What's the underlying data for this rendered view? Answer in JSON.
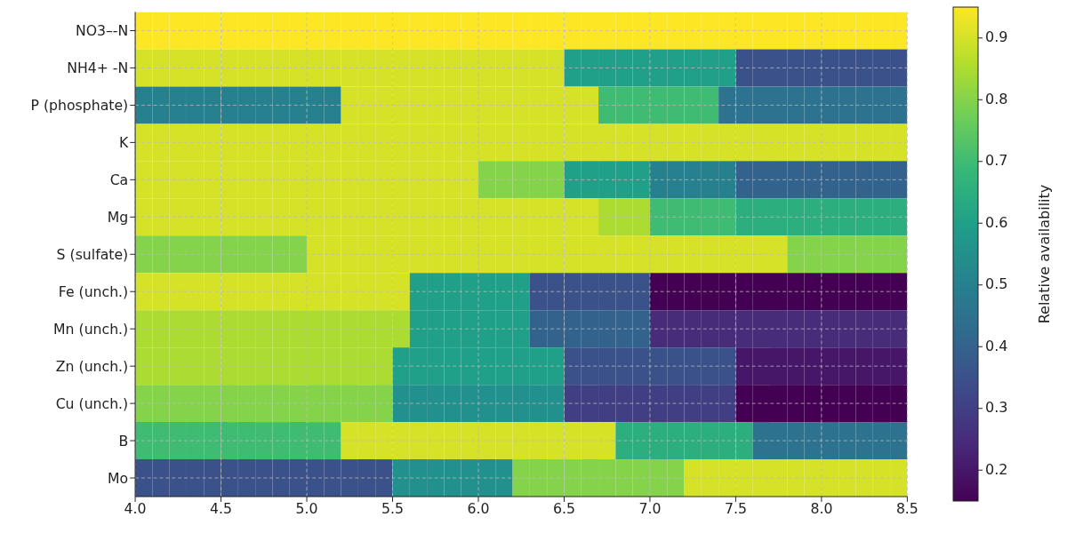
{
  "chart_data": {
    "type": "heatmap",
    "clabel": "Relative availability",
    "x": [
      4.05,
      4.15,
      4.25,
      4.35,
      4.45,
      4.55,
      4.65,
      4.75,
      4.85,
      4.95,
      5.05,
      5.15,
      5.25,
      5.35,
      5.45,
      5.55,
      5.65,
      5.75,
      5.85,
      5.95,
      6.05,
      6.15,
      6.25,
      6.35,
      6.45,
      6.55,
      6.65,
      6.75,
      6.85,
      6.95,
      7.05,
      7.15,
      7.25,
      7.35,
      7.45,
      7.55,
      7.65,
      7.75,
      7.85,
      7.95,
      8.05,
      8.15,
      8.25,
      8.35,
      8.45
    ],
    "xlim": [
      4.0,
      8.5
    ],
    "xticks": [
      {
        "value": 4.0,
        "label": "4.0"
      },
      {
        "value": 4.5,
        "label": "4.5"
      },
      {
        "value": 5.0,
        "label": "5.0"
      },
      {
        "value": 5.5,
        "label": "5.5"
      },
      {
        "value": 6.0,
        "label": "6.0"
      },
      {
        "value": 6.5,
        "label": "6.5"
      },
      {
        "value": 7.0,
        "label": "7.0"
      },
      {
        "value": 7.5,
        "label": "7.5"
      },
      {
        "value": 8.0,
        "label": "8.0"
      },
      {
        "value": 8.5,
        "label": "8.5"
      }
    ],
    "y_categories": [
      "NO3–-N",
      "NH4+ -N",
      "P (phosphate)",
      "K",
      "Ca",
      "Mg",
      "S (sulfate)",
      "Fe (unch.)",
      "Mn (unch.)",
      "Zn (unch.)",
      "Cu (unch.)",
      "B",
      "Mo"
    ],
    "cells": [
      [
        0.95,
        0.95,
        0.95,
        0.95,
        0.95,
        0.95,
        0.95,
        0.95,
        0.95,
        0.95,
        0.95,
        0.95,
        0.95,
        0.95,
        0.95,
        0.95,
        0.95,
        0.95,
        0.95,
        0.95,
        0.95,
        0.95,
        0.95,
        0.95,
        0.95,
        0.95,
        0.95,
        0.95,
        0.95,
        0.95,
        0.95,
        0.95,
        0.95,
        0.95,
        0.95,
        0.95,
        0.95,
        0.95,
        0.95,
        0.95,
        0.95,
        0.95,
        0.95,
        0.95,
        0.95
      ],
      [
        0.9,
        0.9,
        0.9,
        0.9,
        0.9,
        0.9,
        0.9,
        0.9,
        0.9,
        0.9,
        0.9,
        0.9,
        0.9,
        0.9,
        0.9,
        0.9,
        0.9,
        0.9,
        0.9,
        0.9,
        0.9,
        0.9,
        0.9,
        0.9,
        0.9,
        0.6,
        0.6,
        0.6,
        0.6,
        0.6,
        0.6,
        0.6,
        0.6,
        0.6,
        0.6,
        0.35,
        0.35,
        0.35,
        0.35,
        0.35,
        0.35,
        0.35,
        0.35,
        0.35,
        0.35
      ],
      [
        0.5,
        0.5,
        0.5,
        0.5,
        0.5,
        0.5,
        0.5,
        0.5,
        0.5,
        0.5,
        0.5,
        0.5,
        0.9,
        0.9,
        0.9,
        0.9,
        0.9,
        0.9,
        0.9,
        0.9,
        0.9,
        0.9,
        0.9,
        0.9,
        0.9,
        0.9,
        0.9,
        0.7,
        0.7,
        0.7,
        0.7,
        0.7,
        0.7,
        0.7,
        0.45,
        0.45,
        0.45,
        0.45,
        0.45,
        0.45,
        0.45,
        0.45,
        0.45,
        0.45,
        0.45
      ],
      [
        0.9,
        0.9,
        0.9,
        0.9,
        0.9,
        0.9,
        0.9,
        0.9,
        0.9,
        0.9,
        0.9,
        0.9,
        0.9,
        0.9,
        0.9,
        0.9,
        0.9,
        0.9,
        0.9,
        0.9,
        0.9,
        0.9,
        0.9,
        0.9,
        0.9,
        0.9,
        0.9,
        0.9,
        0.9,
        0.9,
        0.9,
        0.9,
        0.9,
        0.9,
        0.9,
        0.9,
        0.9,
        0.9,
        0.9,
        0.9,
        0.9,
        0.9,
        0.9,
        0.9,
        0.9
      ],
      [
        0.9,
        0.9,
        0.9,
        0.9,
        0.9,
        0.9,
        0.9,
        0.9,
        0.9,
        0.9,
        0.9,
        0.9,
        0.9,
        0.9,
        0.9,
        0.9,
        0.9,
        0.9,
        0.9,
        0.9,
        0.8,
        0.8,
        0.8,
        0.8,
        0.8,
        0.6,
        0.6,
        0.6,
        0.6,
        0.6,
        0.5,
        0.5,
        0.5,
        0.5,
        0.5,
        0.4,
        0.4,
        0.4,
        0.4,
        0.4,
        0.4,
        0.4,
        0.4,
        0.4,
        0.4
      ],
      [
        0.9,
        0.9,
        0.9,
        0.9,
        0.9,
        0.9,
        0.9,
        0.9,
        0.9,
        0.9,
        0.9,
        0.9,
        0.9,
        0.9,
        0.9,
        0.9,
        0.9,
        0.9,
        0.9,
        0.9,
        0.9,
        0.9,
        0.9,
        0.9,
        0.9,
        0.9,
        0.9,
        0.85,
        0.85,
        0.85,
        0.7,
        0.7,
        0.7,
        0.7,
        0.7,
        0.65,
        0.65,
        0.65,
        0.65,
        0.65,
        0.65,
        0.65,
        0.65,
        0.65,
        0.65
      ],
      [
        0.8,
        0.8,
        0.8,
        0.8,
        0.8,
        0.8,
        0.8,
        0.8,
        0.8,
        0.8,
        0.9,
        0.9,
        0.9,
        0.9,
        0.9,
        0.9,
        0.9,
        0.9,
        0.9,
        0.9,
        0.9,
        0.9,
        0.9,
        0.9,
        0.9,
        0.9,
        0.9,
        0.9,
        0.9,
        0.9,
        0.9,
        0.9,
        0.9,
        0.9,
        0.9,
        0.9,
        0.9,
        0.9,
        0.8,
        0.8,
        0.8,
        0.8,
        0.8,
        0.8,
        0.8
      ],
      [
        0.9,
        0.9,
        0.9,
        0.9,
        0.9,
        0.9,
        0.9,
        0.9,
        0.9,
        0.9,
        0.9,
        0.9,
        0.9,
        0.9,
        0.9,
        0.9,
        0.6,
        0.6,
        0.6,
        0.6,
        0.6,
        0.6,
        0.6,
        0.35,
        0.35,
        0.35,
        0.35,
        0.35,
        0.35,
        0.35,
        0.15,
        0.15,
        0.15,
        0.15,
        0.15,
        0.15,
        0.15,
        0.15,
        0.15,
        0.15,
        0.15,
        0.15,
        0.15,
        0.15,
        0.15
      ],
      [
        0.85,
        0.85,
        0.85,
        0.85,
        0.85,
        0.85,
        0.85,
        0.85,
        0.85,
        0.85,
        0.85,
        0.85,
        0.85,
        0.85,
        0.85,
        0.85,
        0.6,
        0.6,
        0.6,
        0.6,
        0.6,
        0.6,
        0.6,
        0.4,
        0.4,
        0.4,
        0.4,
        0.4,
        0.4,
        0.4,
        0.25,
        0.25,
        0.25,
        0.25,
        0.25,
        0.25,
        0.25,
        0.25,
        0.25,
        0.25,
        0.25,
        0.25,
        0.25,
        0.25,
        0.25
      ],
      [
        0.85,
        0.85,
        0.85,
        0.85,
        0.85,
        0.85,
        0.85,
        0.85,
        0.85,
        0.85,
        0.85,
        0.85,
        0.85,
        0.85,
        0.85,
        0.6,
        0.6,
        0.6,
        0.6,
        0.6,
        0.6,
        0.6,
        0.6,
        0.6,
        0.6,
        0.35,
        0.35,
        0.35,
        0.35,
        0.35,
        0.35,
        0.35,
        0.35,
        0.35,
        0.35,
        0.2,
        0.2,
        0.2,
        0.2,
        0.2,
        0.2,
        0.2,
        0.2,
        0.2,
        0.2
      ],
      [
        0.8,
        0.8,
        0.8,
        0.8,
        0.8,
        0.8,
        0.8,
        0.8,
        0.8,
        0.8,
        0.8,
        0.8,
        0.8,
        0.8,
        0.8,
        0.55,
        0.55,
        0.55,
        0.55,
        0.55,
        0.55,
        0.55,
        0.55,
        0.55,
        0.55,
        0.3,
        0.3,
        0.3,
        0.3,
        0.3,
        0.3,
        0.3,
        0.3,
        0.3,
        0.3,
        0.15,
        0.15,
        0.15,
        0.15,
        0.15,
        0.15,
        0.15,
        0.15,
        0.15,
        0.15
      ],
      [
        0.7,
        0.7,
        0.7,
        0.7,
        0.7,
        0.7,
        0.7,
        0.7,
        0.7,
        0.7,
        0.7,
        0.7,
        0.9,
        0.9,
        0.9,
        0.9,
        0.9,
        0.9,
        0.9,
        0.9,
        0.9,
        0.9,
        0.9,
        0.9,
        0.9,
        0.9,
        0.9,
        0.9,
        0.65,
        0.65,
        0.65,
        0.65,
        0.65,
        0.65,
        0.65,
        0.65,
        0.45,
        0.45,
        0.45,
        0.45,
        0.45,
        0.45,
        0.45,
        0.45,
        0.45
      ],
      [
        0.35,
        0.35,
        0.35,
        0.35,
        0.35,
        0.35,
        0.35,
        0.35,
        0.35,
        0.35,
        0.35,
        0.35,
        0.35,
        0.35,
        0.35,
        0.55,
        0.55,
        0.55,
        0.55,
        0.55,
        0.55,
        0.55,
        0.8,
        0.8,
        0.8,
        0.8,
        0.8,
        0.8,
        0.8,
        0.8,
        0.8,
        0.8,
        0.9,
        0.9,
        0.9,
        0.9,
        0.9,
        0.9,
        0.9,
        0.9,
        0.9,
        0.9,
        0.9,
        0.9,
        0.9
      ]
    ],
    "clim": [
      0.15,
      0.95
    ],
    "cticks": [
      0.2,
      0.3,
      0.4,
      0.5,
      0.6,
      0.7,
      0.8,
      0.9
    ],
    "grid": true
  }
}
